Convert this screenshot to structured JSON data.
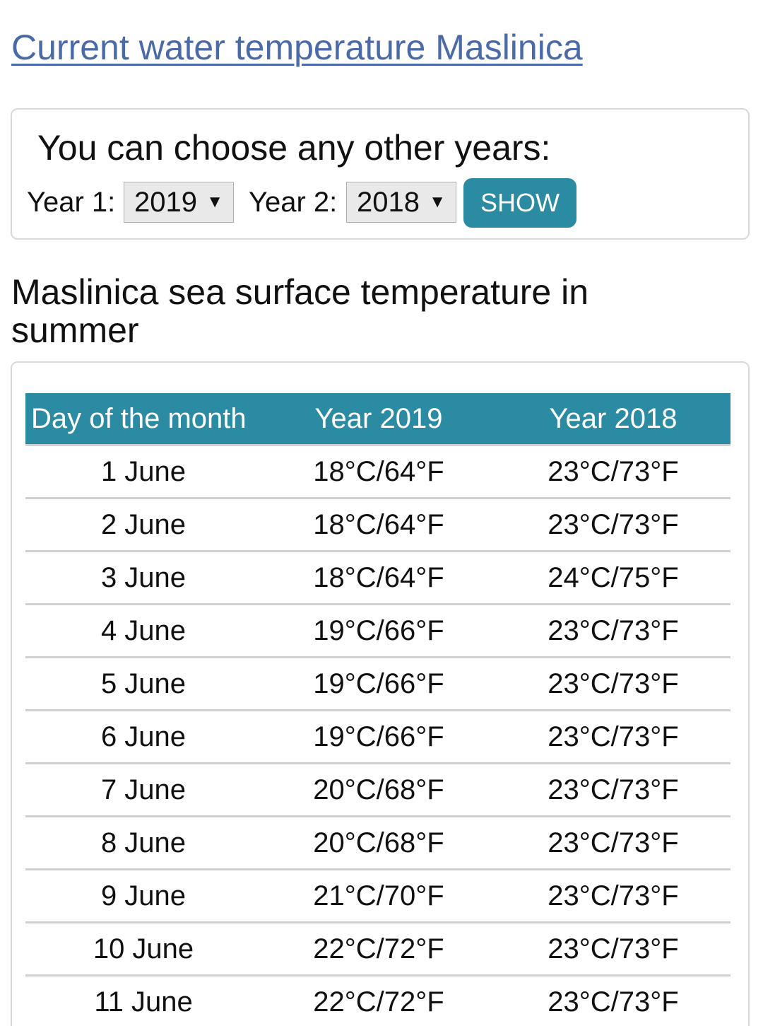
{
  "top_link": "Current water temperature Maslinica",
  "chooser": {
    "title": "You can choose any other years:",
    "year1_label": "Year 1:",
    "year1_value": "2019",
    "year2_label": "Year 2:",
    "year2_value": "2018",
    "show_label": "SHOW",
    "arrow_glyph": "▼"
  },
  "section_title": "Maslinica sea surface temperature in summer",
  "table": {
    "headers": [
      "Day of the month",
      "Year 2019",
      "Year 2018"
    ],
    "rows": [
      [
        "1 June",
        "18°C/64°F",
        "23°C/73°F"
      ],
      [
        "2 June",
        "18°C/64°F",
        "23°C/73°F"
      ],
      [
        "3 June",
        "18°C/64°F",
        "24°C/75°F"
      ],
      [
        "4 June",
        "19°C/66°F",
        "23°C/73°F"
      ],
      [
        "5 June",
        "19°C/66°F",
        "23°C/73°F"
      ],
      [
        "6 June",
        "19°C/66°F",
        "23°C/73°F"
      ],
      [
        "7 June",
        "20°C/68°F",
        "23°C/73°F"
      ],
      [
        "8 June",
        "20°C/68°F",
        "23°C/73°F"
      ],
      [
        "9 June",
        "21°C/70°F",
        "23°C/73°F"
      ],
      [
        "10 June",
        "22°C/72°F",
        "23°C/73°F"
      ],
      [
        "11 June",
        "22°C/72°F",
        "23°C/73°F"
      ]
    ]
  },
  "colors": {
    "link": "#4a6aa8",
    "accent": "#2a8ba3",
    "header_text": "#ffffff"
  }
}
